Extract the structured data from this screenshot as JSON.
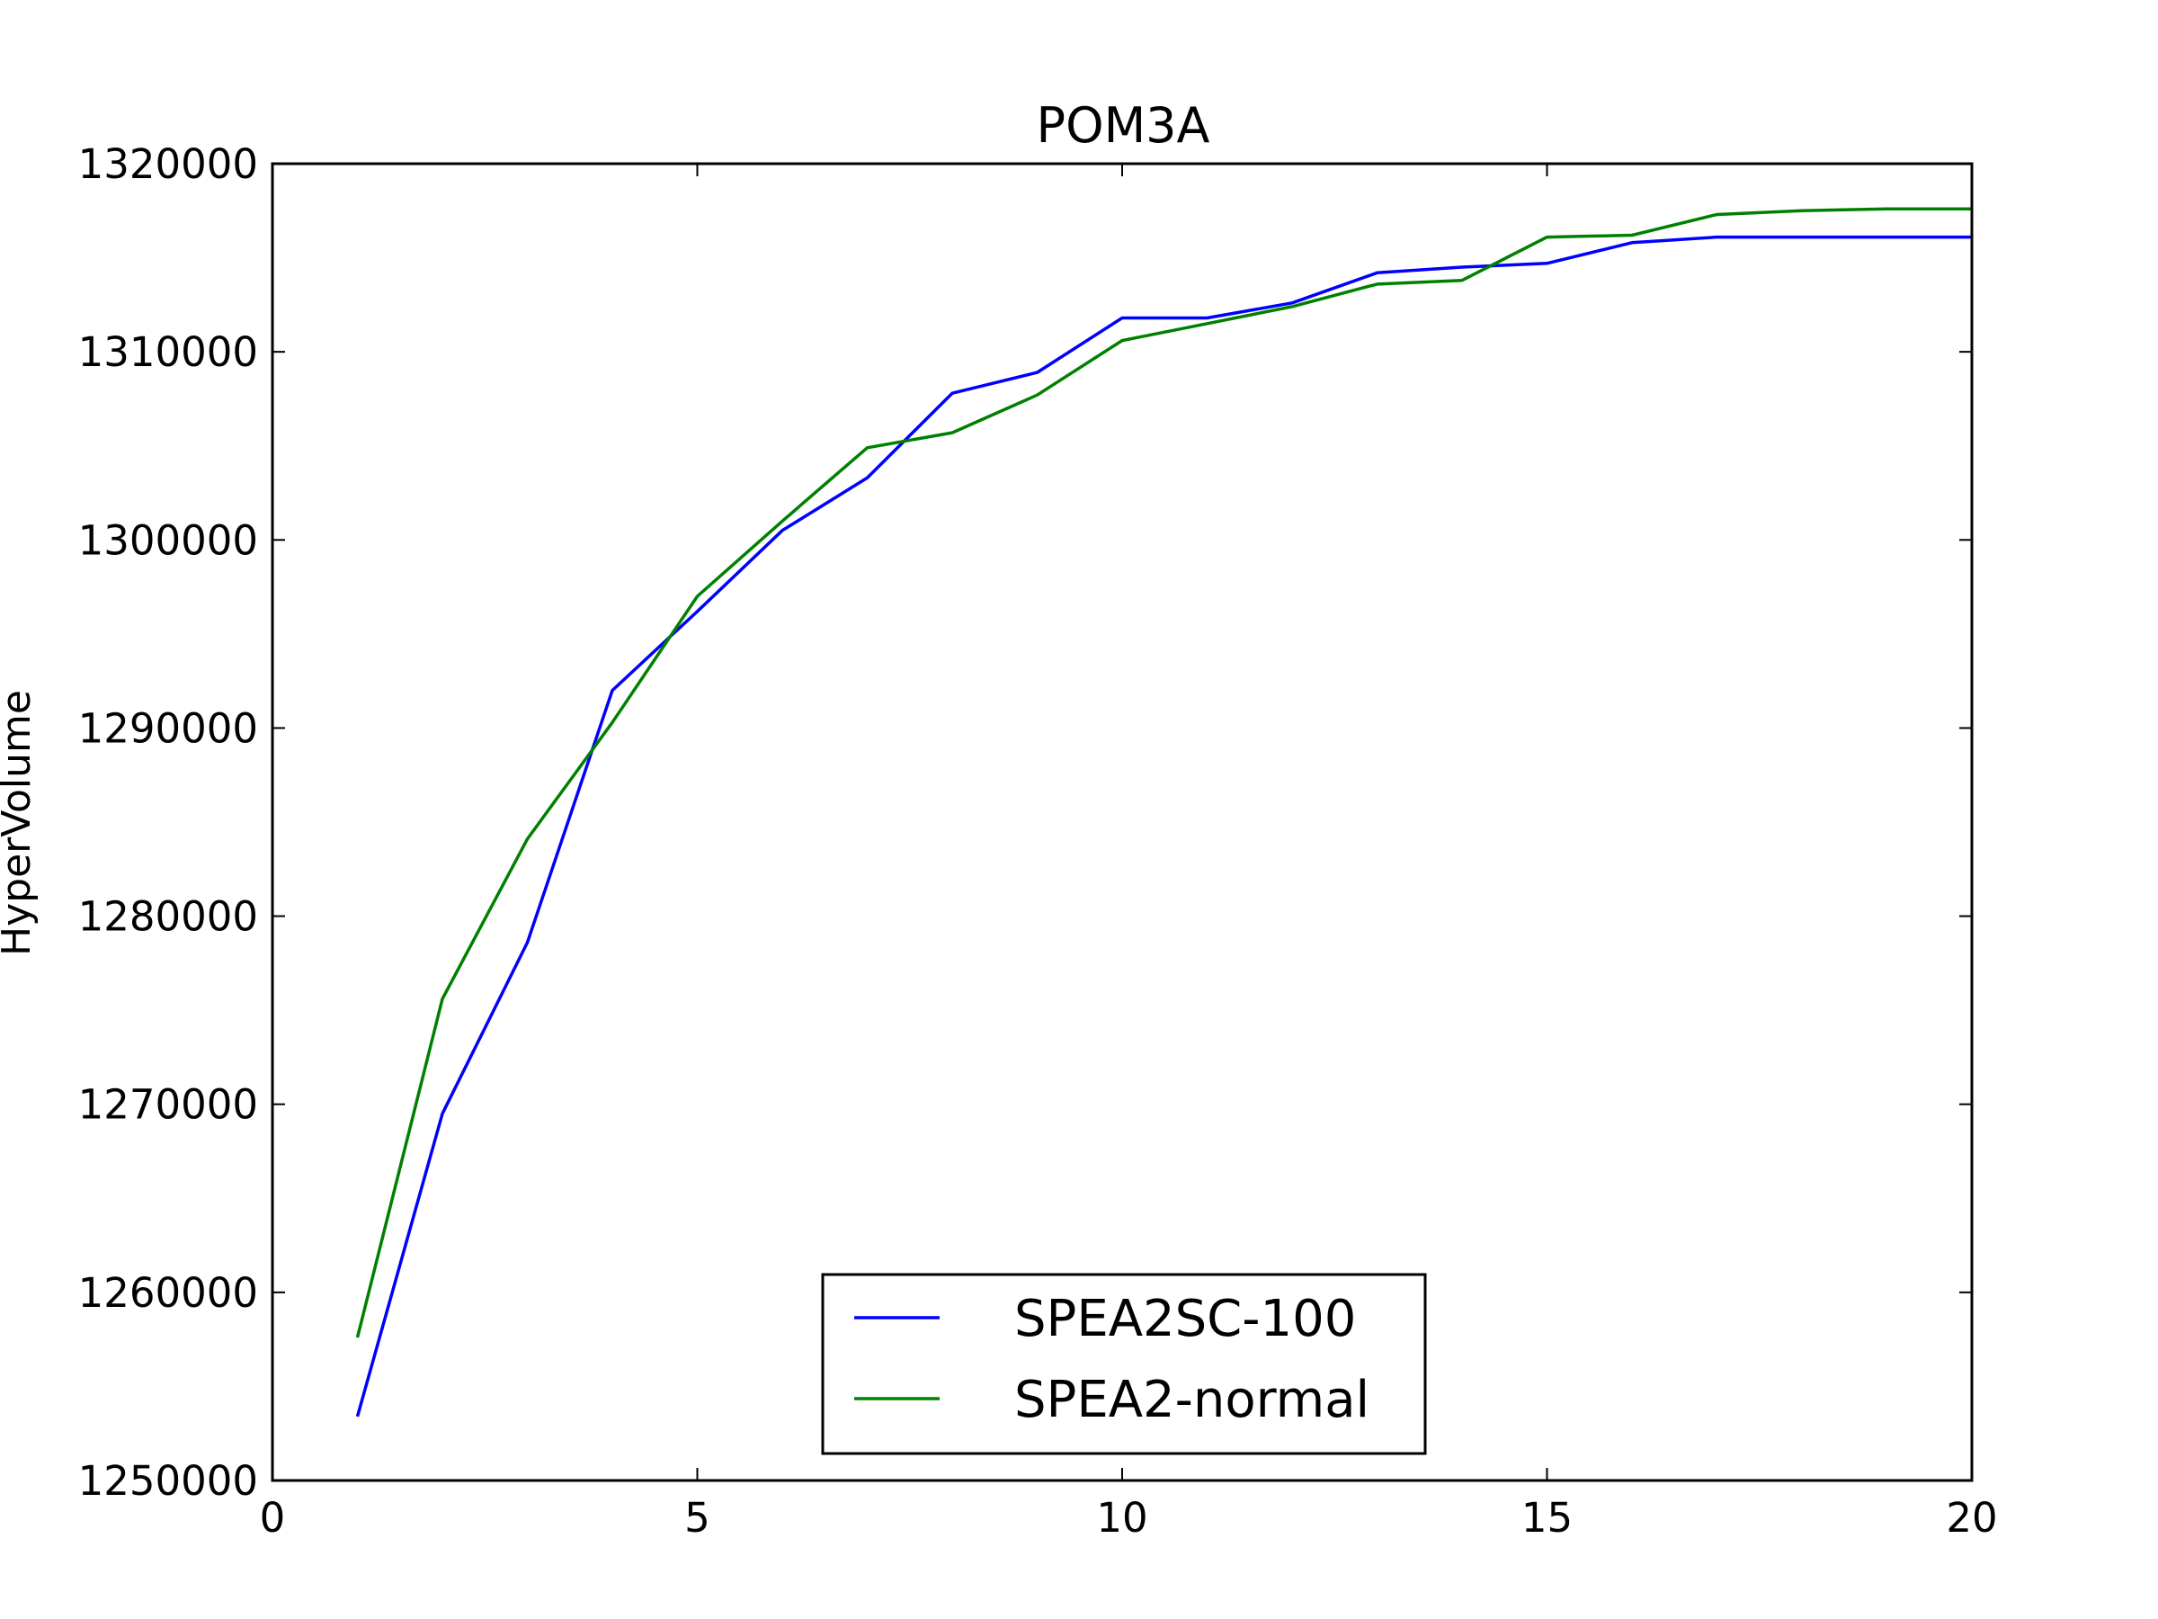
{
  "chart_data": {
    "type": "line",
    "title": "POM3A",
    "xlabel": "",
    "ylabel": "HyperVolume",
    "xlim": [
      0,
      20
    ],
    "ylim": [
      1250000,
      1320000
    ],
    "xticks": [
      0,
      5,
      10,
      15,
      20
    ],
    "xtick_labels": [
      "0",
      "5",
      "10",
      "15",
      "20"
    ],
    "yticks": [
      1250000,
      1260000,
      1270000,
      1280000,
      1290000,
      1300000,
      1310000,
      1320000
    ],
    "ytick_labels": [
      "1250000",
      "1260000",
      "1270000",
      "1280000",
      "1290000",
      "1300000",
      "1310000",
      "1320000"
    ],
    "grid": false,
    "legend_position": "lower-center",
    "x": [
      1,
      2,
      3,
      4,
      5,
      6,
      7,
      8,
      9,
      10,
      11,
      12,
      13,
      14,
      15,
      16,
      17,
      18,
      19,
      20
    ],
    "series": [
      {
        "name": "SPEA2SC-100",
        "color": "#0000ff",
        "values": [
          1253400,
          1269500,
          1278600,
          1292000,
          1296200,
          1300500,
          1303300,
          1307800,
          1308900,
          1311800,
          1311800,
          1312600,
          1314200,
          1314500,
          1314700,
          1315800,
          1316100,
          1316100,
          1316100,
          1316100
        ]
      },
      {
        "name": "SPEA2-normal",
        "color": "#008000",
        "values": [
          1257600,
          1275600,
          1284100,
          1290300,
          1297000,
          1301000,
          1304900,
          1305700,
          1307700,
          1310600,
          1311500,
          1312400,
          1313600,
          1313800,
          1316100,
          1316200,
          1317300,
          1317500,
          1317600,
          1317600
        ]
      }
    ]
  }
}
